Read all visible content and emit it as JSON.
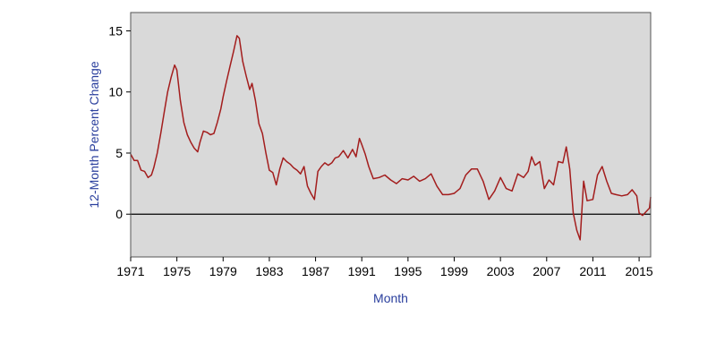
{
  "colors": {
    "plot_background": "#d9d9d9",
    "series_line": "#a31d1d",
    "zero_line": "#000000",
    "axis_title": "#2a3f9d",
    "frame": "#555555"
  },
  "chart_data": {
    "type": "line",
    "title": "",
    "xlabel": "Month",
    "ylabel": "12-Month Percent Change",
    "xlim": [
      1971,
      2016
    ],
    "ylim": [
      -3.5,
      16.5
    ],
    "x_ticks": [
      1971,
      1975,
      1979,
      1983,
      1987,
      1991,
      1995,
      1999,
      2003,
      2007,
      2011,
      2015
    ],
    "y_ticks": [
      0,
      5,
      10,
      15
    ],
    "grid": false,
    "reference_line_y": 0,
    "series": [
      {
        "x": [
          1971.0,
          1971.3,
          1971.6,
          1971.9,
          1972.2,
          1972.5,
          1972.8,
          1973.0,
          1973.3,
          1973.6,
          1973.9,
          1974.2,
          1974.5,
          1974.8,
          1975.0,
          1975.3,
          1975.6,
          1975.9,
          1976.2,
          1976.5,
          1976.8,
          1977.0,
          1977.3,
          1977.6,
          1977.9,
          1978.2,
          1978.5,
          1978.8,
          1979.0,
          1979.3,
          1979.6,
          1979.9,
          1980.2,
          1980.4,
          1980.7,
          1981.0,
          1981.3,
          1981.5,
          1981.8,
          1982.1,
          1982.4,
          1982.7,
          1983.0,
          1983.3,
          1983.6,
          1983.9,
          1984.2,
          1984.5,
          1984.8,
          1985.1,
          1985.4,
          1985.7,
          1986.0,
          1986.3,
          1986.6,
          1986.9,
          1987.2,
          1987.5,
          1987.8,
          1988.1,
          1988.4,
          1988.7,
          1989.0,
          1989.4,
          1989.8,
          1990.2,
          1990.5,
          1990.8,
          1991.0,
          1991.3,
          1991.6,
          1992.0,
          1992.5,
          1993.0,
          1993.5,
          1994.0,
          1994.5,
          1995.0,
          1995.5,
          1996.0,
          1996.5,
          1997.0,
          1997.5,
          1998.0,
          1998.5,
          1999.0,
          1999.5,
          2000.0,
          2000.5,
          2001.0,
          2001.5,
          2002.0,
          2002.5,
          2003.0,
          2003.5,
          2004.0,
          2004.5,
          2005.0,
          2005.4,
          2005.7,
          2006.0,
          2006.4,
          2006.8,
          2007.2,
          2007.6,
          2008.0,
          2008.4,
          2008.7,
          2009.0,
          2009.3,
          2009.6,
          2009.9,
          2010.2,
          2010.5,
          2011.0,
          2011.4,
          2011.8,
          2012.2,
          2012.6,
          2013.0,
          2013.5,
          2014.0,
          2014.4,
          2014.8,
          2015.0,
          2015.3,
          2015.6,
          2015.9,
          2016.0
        ],
        "y": [
          4.9,
          4.4,
          4.4,
          3.6,
          3.5,
          3.0,
          3.2,
          3.8,
          5.0,
          6.6,
          8.3,
          10.0,
          11.2,
          12.2,
          11.8,
          9.3,
          7.5,
          6.5,
          5.9,
          5.4,
          5.1,
          5.9,
          6.8,
          6.7,
          6.5,
          6.6,
          7.5,
          8.6,
          9.6,
          10.9,
          12.1,
          13.3,
          14.6,
          14.4,
          12.5,
          11.3,
          10.2,
          10.7,
          9.3,
          7.4,
          6.6,
          5.0,
          3.6,
          3.4,
          2.4,
          3.7,
          4.6,
          4.3,
          4.1,
          3.8,
          3.6,
          3.3,
          3.9,
          2.3,
          1.7,
          1.2,
          3.5,
          3.9,
          4.2,
          4.0,
          4.2,
          4.6,
          4.7,
          5.2,
          4.6,
          5.3,
          4.7,
          6.2,
          5.7,
          4.9,
          3.9,
          2.9,
          3.0,
          3.2,
          2.8,
          2.5,
          2.9,
          2.8,
          3.1,
          2.7,
          2.9,
          3.3,
          2.3,
          1.6,
          1.6,
          1.7,
          2.1,
          3.2,
          3.7,
          3.7,
          2.7,
          1.2,
          1.9,
          3.0,
          2.1,
          1.9,
          3.3,
          3.0,
          3.5,
          4.7,
          4.0,
          4.3,
          2.1,
          2.8,
          2.4,
          4.3,
          4.2,
          5.5,
          3.7,
          0.1,
          -1.3,
          -2.1,
          2.7,
          1.1,
          1.2,
          3.2,
          3.9,
          2.7,
          1.7,
          1.6,
          1.5,
          1.6,
          2.0,
          1.5,
          0.1,
          -0.1,
          0.2,
          0.5,
          1.4
        ]
      }
    ]
  }
}
